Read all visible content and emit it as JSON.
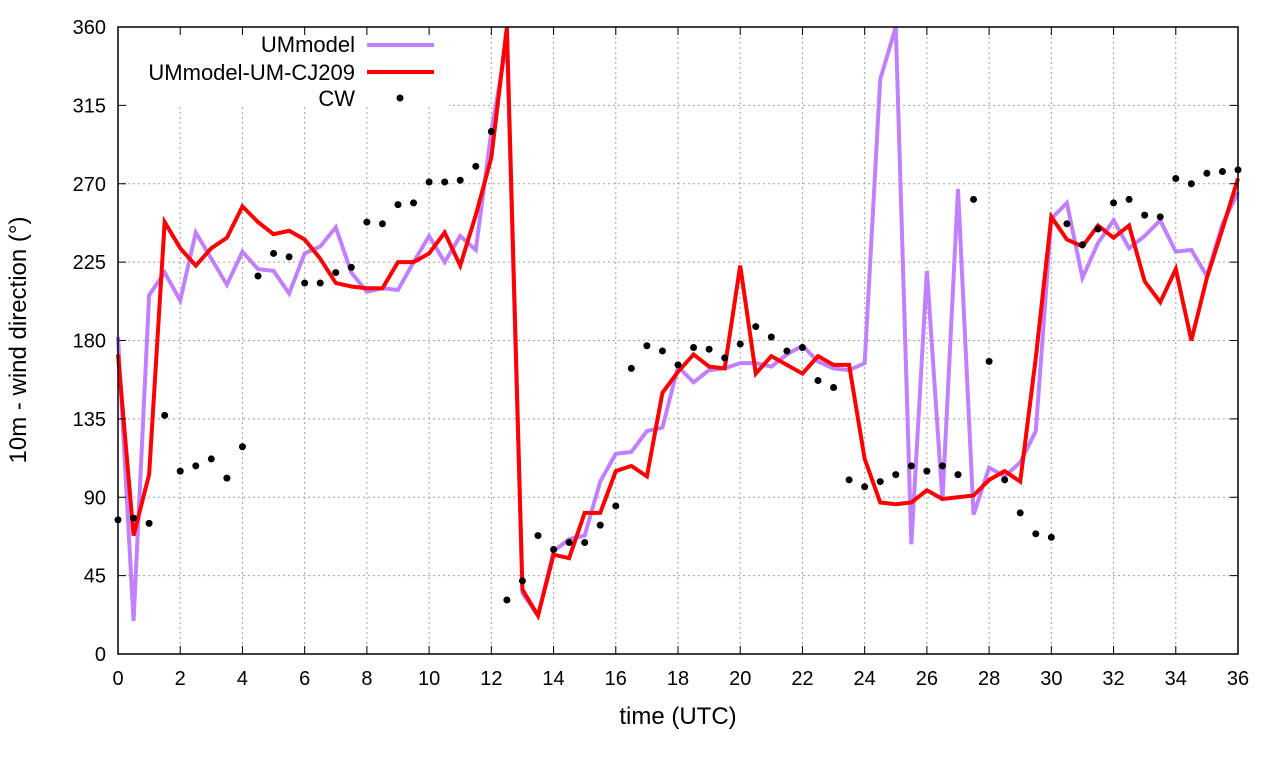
{
  "chart_data": {
    "type": "line",
    "title": "",
    "xlabel": "time (UTC)",
    "ylabel": "10m - wind direction (°)",
    "xlim": [
      0,
      36
    ],
    "ylim": [
      0,
      360
    ],
    "xticks": [
      0,
      2,
      4,
      6,
      8,
      10,
      12,
      14,
      16,
      18,
      20,
      22,
      24,
      26,
      28,
      30,
      32,
      34,
      36
    ],
    "yticks": [
      0,
      45,
      90,
      135,
      180,
      225,
      270,
      315,
      360
    ],
    "grid": true,
    "legend_position": "top-left",
    "x_step": 0.5,
    "series": [
      {
        "name": "UMmodel",
        "style": "line",
        "color": "#c080ff",
        "values": [
          182,
          19,
          206,
          219,
          203,
          242,
          227,
          212,
          231,
          221,
          220,
          207,
          230,
          234,
          245,
          219,
          208,
          210,
          209,
          225,
          240,
          225,
          240,
          232,
          300,
          352,
          35,
          22,
          59,
          66,
          68,
          99,
          115,
          116,
          128,
          130,
          165,
          156,
          163,
          164,
          167,
          167,
          165,
          172,
          177,
          168,
          164,
          163,
          167,
          330,
          360,
          63,
          220,
          88,
          267,
          80,
          107,
          102,
          110,
          128,
          250,
          259,
          216,
          236,
          249,
          233,
          240,
          249,
          231,
          232,
          217,
          247,
          265
        ]
      },
      {
        "name": "UMmodel-UM-CJ209",
        "style": "line",
        "color": "#ff0000",
        "values": [
          172,
          68,
          103,
          248,
          233,
          223,
          233,
          239,
          257,
          248,
          241,
          243,
          238,
          227,
          213,
          211,
          210,
          210,
          225,
          225,
          230,
          242,
          223,
          252,
          285,
          360,
          37,
          22,
          57,
          55,
          81,
          81,
          105,
          108,
          102,
          150,
          162,
          172,
          165,
          164,
          223,
          161,
          171,
          166,
          161,
          171,
          166,
          166,
          112,
          87,
          86,
          87,
          94,
          89,
          90,
          91,
          100,
          105,
          99,
          170,
          251,
          238,
          234,
          246,
          239,
          246,
          214,
          202,
          221,
          180,
          216,
          244,
          273
        ]
      },
      {
        "name": "CW",
        "style": "points",
        "color": "#000000",
        "values": [
          77,
          78,
          75,
          137,
          105,
          108,
          112,
          101,
          119,
          217,
          230,
          228,
          213,
          213,
          219,
          222,
          248,
          247,
          258,
          259,
          271,
          271,
          272,
          280,
          300,
          31,
          42,
          68,
          60,
          64,
          64,
          74,
          85,
          164,
          177,
          174,
          166,
          176,
          175,
          170,
          178,
          188,
          182,
          174,
          176,
          157,
          153,
          100,
          96,
          99,
          103,
          108,
          105,
          108,
          103,
          261,
          168,
          100,
          81,
          69,
          67,
          247,
          235,
          244,
          259,
          261,
          252,
          251,
          273,
          270,
          276,
          277,
          278
        ]
      }
    ]
  }
}
